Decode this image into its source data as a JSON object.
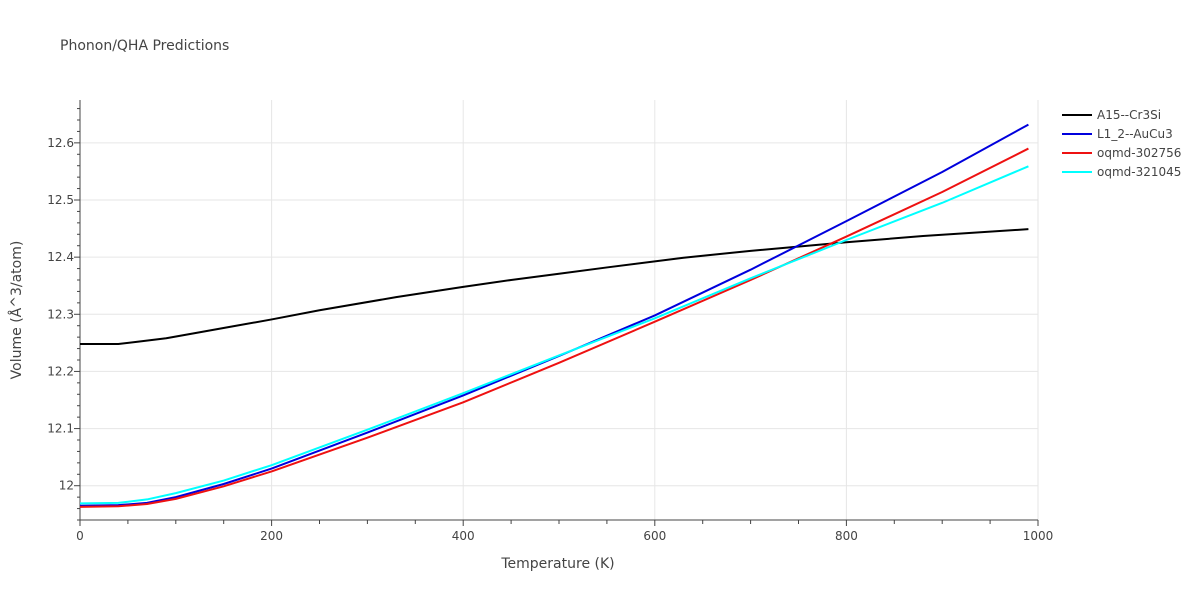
{
  "chart_data": {
    "type": "line",
    "title": "Phonon/QHA Predictions",
    "xlabel": "Temperature (K)",
    "ylabel": "Volume (Å^3/atom)",
    "xlim": [
      0,
      1000
    ],
    "ylim": [
      11.94,
      12.675
    ],
    "xticks": [
      0,
      200,
      400,
      600,
      800,
      1000
    ],
    "xtick_labels": [
      "0",
      "200",
      "400",
      "600",
      "800",
      "1000"
    ],
    "yticks": [
      12.0,
      12.1,
      12.2,
      12.3,
      12.4,
      12.5,
      12.6
    ],
    "ytick_labels": [
      "12",
      "12.1",
      "12.2",
      "12.3",
      "12.4",
      "12.5",
      "12.6"
    ],
    "grid": true,
    "legend_position": "top-right",
    "series": [
      {
        "name": "A15--Cr3Si",
        "color": "#000000",
        "x": [
          0,
          40,
          60,
          90,
          120,
          160,
          200,
          250,
          330,
          400,
          450,
          500,
          550,
          630,
          700,
          800,
          880,
          990
        ],
        "y": [
          12.248,
          12.248,
          12.252,
          12.258,
          12.267,
          12.279,
          12.291,
          12.307,
          12.33,
          12.348,
          12.36,
          12.371,
          12.382,
          12.399,
          12.411,
          12.426,
          12.437,
          12.449
        ]
      },
      {
        "name": "L1_2--AuCu3",
        "color": "#0000dd",
        "x": [
          0,
          40,
          70,
          100,
          150,
          200,
          300,
          400,
          500,
          600,
          700,
          800,
          900,
          990
        ],
        "y": [
          11.965,
          11.966,
          11.97,
          11.98,
          12.003,
          12.03,
          12.093,
          12.158,
          12.227,
          12.298,
          12.378,
          12.463,
          12.549,
          12.632
        ]
      },
      {
        "name": "oqmd-302756",
        "color": "#ee1111",
        "x": [
          0,
          40,
          70,
          100,
          150,
          200,
          300,
          400,
          500,
          600,
          700,
          800,
          900,
          990
        ],
        "y": [
          11.963,
          11.964,
          11.968,
          11.977,
          11.999,
          12.025,
          12.084,
          12.146,
          12.215,
          12.287,
          12.36,
          12.436,
          12.514,
          12.59
        ]
      },
      {
        "name": "oqmd-321045",
        "color": "#00ffff",
        "x": [
          0,
          40,
          70,
          100,
          150,
          200,
          300,
          400,
          500,
          600,
          700,
          800,
          900,
          990
        ],
        "y": [
          11.969,
          11.97,
          11.976,
          11.987,
          12.009,
          12.036,
          12.098,
          12.162,
          12.228,
          12.293,
          12.363,
          12.43,
          12.495,
          12.559
        ]
      }
    ]
  }
}
